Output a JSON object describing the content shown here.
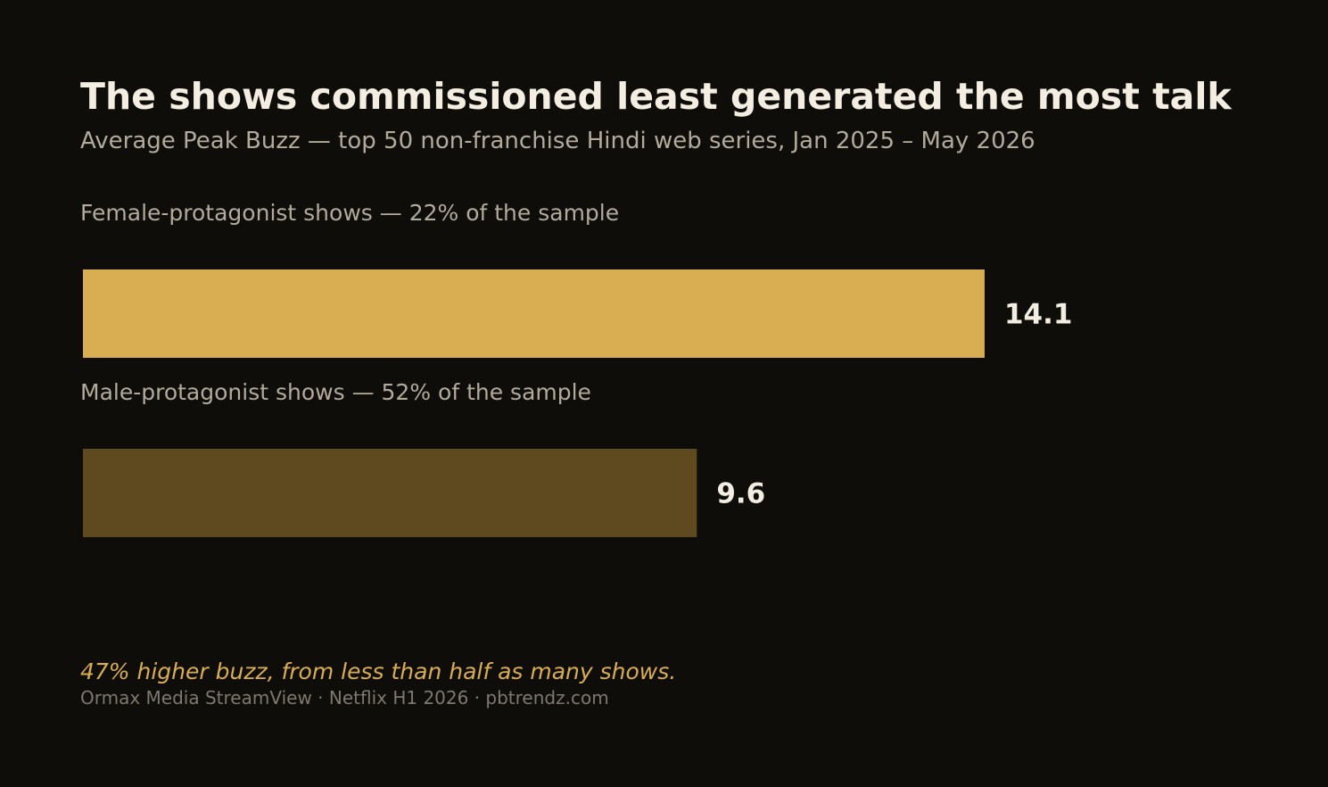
{
  "chart_data": {
    "type": "bar",
    "orientation": "horizontal",
    "title": "The shows commissioned least generated the most talk",
    "subtitle": "Average Peak Buzz — top 50 non-franchise Hindi web series, Jan 2025 – May 2026",
    "categories": [
      "Female-protagonist shows — 22% of the sample",
      "Male-protagonist shows — 52% of the sample"
    ],
    "values": [
      14.1,
      9.6
    ],
    "value_labels": [
      "14.1",
      "9.6"
    ],
    "colors": [
      "#d9ad52",
      "#5f4a20"
    ],
    "xlim": [
      0,
      20
    ],
    "grid": false,
    "xlabel": "",
    "ylabel": ""
  },
  "footnote": "47% higher buzz, from less than half as many shows.",
  "source": "Ormax Media StreamView · Netflix H1 2026 · pbtrendz.com"
}
